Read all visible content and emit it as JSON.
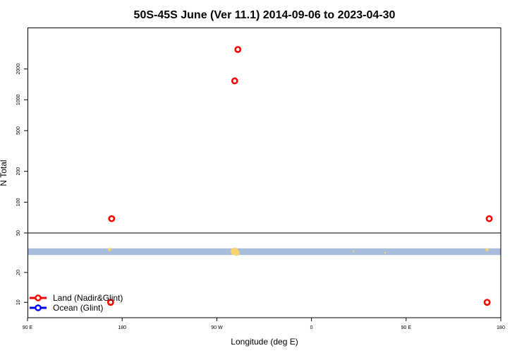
{
  "chart_data": {
    "type": "scatter",
    "title": "50S-45S June (Ver 11.1)   2014-09-06 to 2023-04-30",
    "xlabel": "Longitude (deg E)",
    "ylabel": "N Total",
    "x_ticks": [
      {
        "pos": 90,
        "label": "90 E"
      },
      {
        "pos": 180,
        "label": "180"
      },
      {
        "pos": 270,
        "label": "90 W"
      },
      {
        "pos": 360,
        "label": "0"
      },
      {
        "pos": 450,
        "label": "90 E"
      },
      {
        "pos": 540,
        "label": "180"
      }
    ],
    "xlim": [
      90,
      540
    ],
    "y_scale": "log",
    "upper_panel": {
      "ylim": [
        50,
        5000
      ],
      "y_ticks": [
        {
          "value": 100,
          "label": "100"
        },
        {
          "value": 200,
          "label": "200"
        },
        {
          "value": 500,
          "label": "500"
        },
        {
          "value": 1000,
          "label": "1000"
        },
        {
          "value": 2000,
          "label": "2000"
        }
      ]
    },
    "lower_panel": {
      "ylim": [
        7,
        50
      ],
      "y_ticks": [
        {
          "value": 10,
          "label": "10"
        },
        {
          "value": 20,
          "label": "20"
        },
        {
          "value": 50,
          "label": "50"
        }
      ],
      "band": {
        "y_low": 30,
        "y_high": 35,
        "color": "#a7bddb"
      },
      "band_markers": [
        {
          "x": 168,
          "y": 34,
          "size": 2.4
        },
        {
          "x": 287,
          "y": 32.5,
          "size": 5.5
        },
        {
          "x": 289,
          "y": 31.5,
          "size": 4
        },
        {
          "x": 400,
          "y": 32.5,
          "size": 1
        },
        {
          "x": 430,
          "y": 31.5,
          "size": 1.2
        },
        {
          "x": 527,
          "y": 34,
          "size": 2.2
        }
      ],
      "band_marker_color": "#f8d470"
    },
    "series": [
      {
        "name": "Land (Nadir&Glint)",
        "color": "#ff0000",
        "points": [
          {
            "x": 290,
            "y": 3100
          },
          {
            "x": 287,
            "y": 1530
          },
          {
            "x": 170,
            "y": 69
          },
          {
            "x": 529,
            "y": 69
          },
          {
            "x": 169,
            "y": 10
          },
          {
            "x": 527,
            "y": 10
          }
        ]
      },
      {
        "name": "Ocean (Glint)",
        "color": "#0000ff",
        "points": []
      }
    ],
    "legend_position": "bottom-left",
    "grid": false
  }
}
